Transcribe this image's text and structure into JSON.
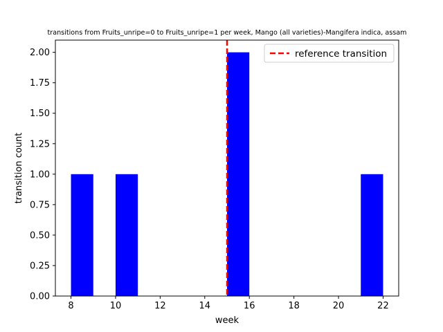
{
  "chart_data": {
    "type": "bar",
    "title": "transitions from Fruits_unripe=0 to Fruits_unripe=1 per week, Mango (all varieties)-Mangifera indica, assam",
    "xlabel": "week",
    "ylabel": "transition count",
    "xlim": [
      7.3,
      22.7
    ],
    "ylim": [
      0,
      2.1
    ],
    "xticks": [
      8,
      10,
      12,
      14,
      16,
      18,
      20,
      22
    ],
    "xtick_labels": [
      "8",
      "10",
      "12",
      "14",
      "16",
      "18",
      "20",
      "22"
    ],
    "yticks": [
      0,
      0.25,
      0.5,
      0.75,
      1.0,
      1.25,
      1.5,
      1.75,
      2.0
    ],
    "ytick_labels": [
      "0.00",
      "0.25",
      "0.50",
      "0.75",
      "1.00",
      "1.25",
      "1.50",
      "1.75",
      "2.00"
    ],
    "bins": [
      {
        "start": 8,
        "end": 9,
        "value": 1
      },
      {
        "start": 10,
        "end": 11,
        "value": 1
      },
      {
        "start": 15,
        "end": 16,
        "value": 2
      },
      {
        "start": 21,
        "end": 22,
        "value": 1
      }
    ],
    "bar_color": "#0000ff",
    "reference_line": {
      "x": 15,
      "label": "reference transition",
      "color": "#ff0000",
      "style": "dashed"
    },
    "legend_position": "top-right",
    "grid": false
  }
}
